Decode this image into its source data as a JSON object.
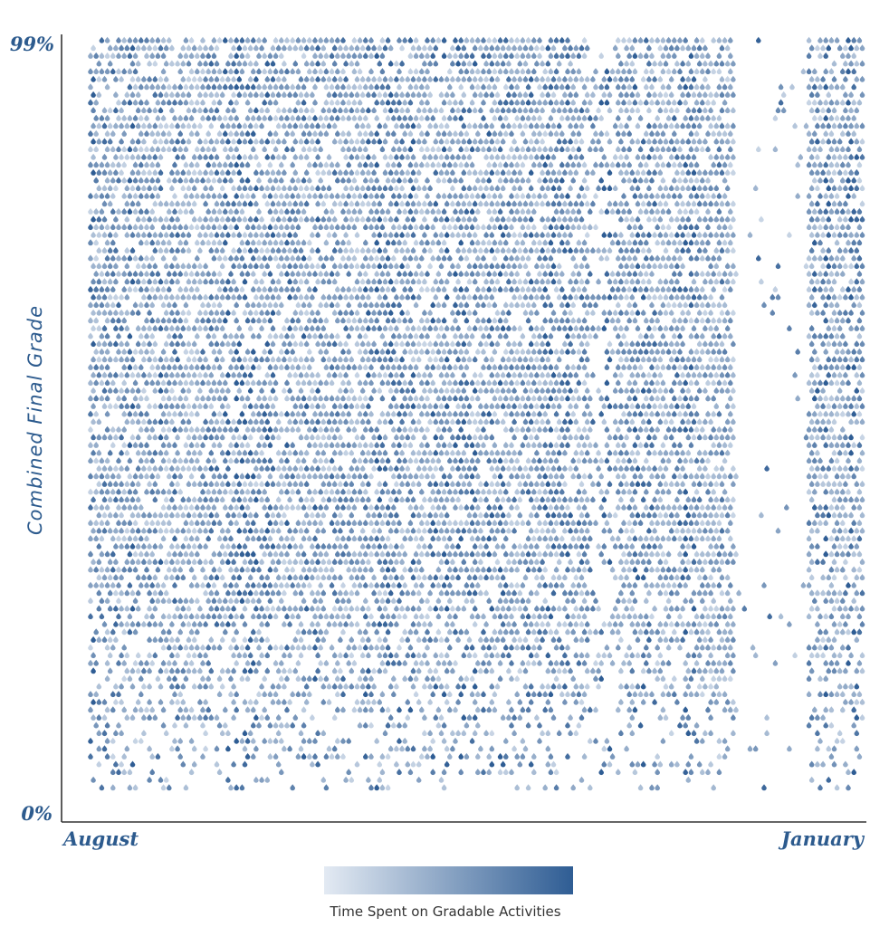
{
  "chart_data": {
    "type": "heatmap",
    "title": "",
    "xlabel": "",
    "ylabel": "Combined Final Grade",
    "x_tick_labels": [
      "August",
      "January"
    ],
    "y_tick_labels": [
      "0%",
      "99%"
    ],
    "ylim": [
      0,
      99
    ],
    "x_range": [
      "August",
      "January"
    ],
    "legend": {
      "title": "Time Spent on Gradable Activities",
      "type": "gradient",
      "low_color": "#e3eaf3",
      "high_color": "#2f5d94",
      "placement": "bottom-center"
    },
    "colors": {
      "axis": "#333333",
      "label": "#2d5b8e"
    },
    "mark": "teardrop-dot",
    "grid": false
  }
}
